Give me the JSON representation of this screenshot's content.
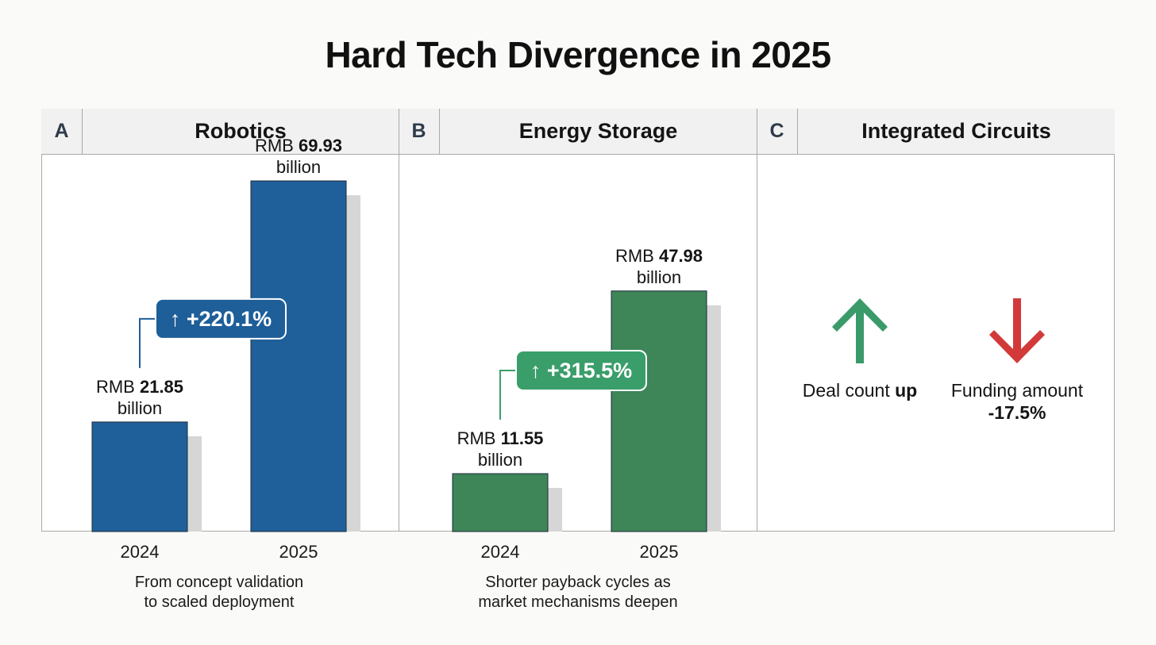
{
  "title": "Hard Tech Divergence in 2025",
  "panels": [
    {
      "letter": "A",
      "name": "Robotics"
    },
    {
      "letter": "B",
      "name": "Energy Storage"
    },
    {
      "letter": "C",
      "name": "Integrated Circuits"
    }
  ],
  "chart_data": [
    {
      "type": "bar",
      "title": "Robotics",
      "categories": [
        "2024",
        "2025"
      ],
      "values": [
        21.85,
        69.93
      ],
      "unit": "RMB billion",
      "value_labels": [
        {
          "prefix": "RMB",
          "value": "21.85",
          "suffix": "billion"
        },
        {
          "prefix": "RMB",
          "value": "69.93",
          "suffix": "billion"
        }
      ],
      "growth_label": "+220.1%",
      "caption": [
        "From concept validation",
        "to scaled deployment"
      ],
      "color": "#20609a",
      "badge_color": "#1e5e99",
      "ylim": [
        0,
        75
      ]
    },
    {
      "type": "bar",
      "title": "Energy Storage",
      "categories": [
        "2024",
        "2025"
      ],
      "values": [
        11.55,
        47.98
      ],
      "unit": "RMB billion",
      "value_labels": [
        {
          "prefix": "RMB",
          "value": "11.55",
          "suffix": "billion"
        },
        {
          "prefix": "RMB",
          "value": "47.98",
          "suffix": "billion"
        }
      ],
      "growth_label": "+315.5%",
      "caption": [
        "Shorter payback cycles as",
        "market mechanisms deepen"
      ],
      "color": "#3e8558",
      "badge_color": "#3a9e6a",
      "ylim": [
        0,
        75
      ]
    }
  ],
  "integrated_circuits": {
    "deal_count": {
      "text": "Deal count ",
      "emphasis": "up",
      "icon": "arrow-up-icon",
      "color": "#3a9a6a"
    },
    "funding_amount": {
      "text": "Funding amount",
      "emphasis": "-17.5%",
      "icon": "arrow-down-icon",
      "color": "#d23a3a"
    }
  },
  "arrow_glyph": "↑"
}
